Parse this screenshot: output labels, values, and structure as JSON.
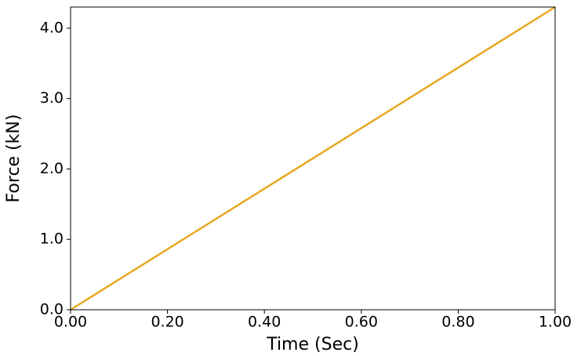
{
  "chart_data": {
    "type": "line",
    "x_label": "Time (Sec)",
    "y_label": "Force (kN)",
    "x": [
      0,
      1.0
    ],
    "series": [
      {
        "name": "Force",
        "color": "#e8a820",
        "values": [
          0,
          4.3
        ]
      }
    ],
    "xlim": [
      0,
      1.0
    ],
    "xticks": [
      {
        "value": 0,
        "label": "0.00"
      },
      {
        "value": 0.2,
        "label": "0.20"
      },
      {
        "value": 0.4,
        "label": "0.40"
      },
      {
        "value": 0.6,
        "label": "0.60"
      },
      {
        "value": 0.8,
        "label": "0.80"
      },
      {
        "value": 1.0,
        "label": "1.00"
      }
    ],
    "ylim": [
      0,
      4.3
    ],
    "yticks": [
      {
        "value": 0,
        "label": "0.0"
      },
      {
        "value": 1,
        "label": "1.0"
      },
      {
        "value": 2,
        "label": "2.0"
      },
      {
        "value": 3,
        "label": "3.0"
      },
      {
        "value": 4,
        "label": "4.0"
      }
    ],
    "grid": false
  }
}
